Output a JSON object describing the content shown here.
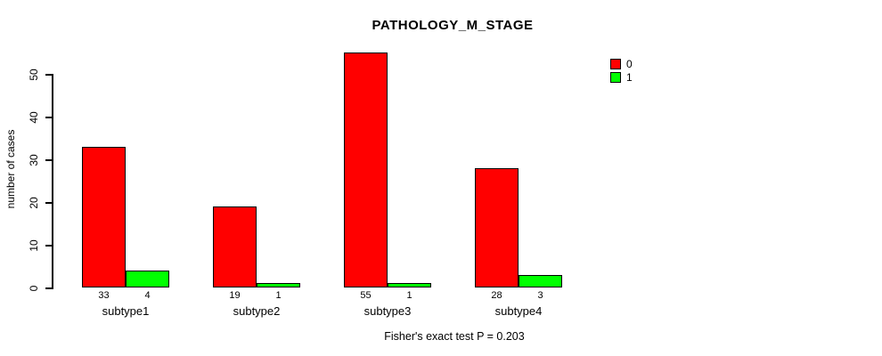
{
  "title": "PATHOLOGY_M_STAGE",
  "footer": "Fisher's exact test P = 0.203",
  "colors": {
    "series_0": "#FF0000",
    "series_1": "#00FF00",
    "axis": "#000000",
    "background": "#FFFFFF"
  },
  "legend": {
    "position": "top-right",
    "items": [
      {
        "label": "0",
        "color": "#FF0000"
      },
      {
        "label": "1",
        "color": "#00FF00"
      }
    ]
  },
  "chart_data": {
    "type": "bar",
    "title": "PATHOLOGY_M_STAGE",
    "categories": [
      "subtype1",
      "subtype2",
      "subtype3",
      "subtype4"
    ],
    "series": [
      {
        "name": "0",
        "color": "#FF0000",
        "values": [
          33,
          19,
          55,
          28
        ]
      },
      {
        "name": "1",
        "color": "#00FF00",
        "values": [
          4,
          1,
          1,
          3
        ]
      }
    ],
    "bar_count_labels": {
      "subtype1": [
        33,
        4
      ],
      "subtype2": [
        19,
        1
      ],
      "subtype3": [
        55,
        1
      ],
      "subtype4": [
        28,
        3
      ]
    },
    "xlabel": "",
    "ylabel": "number of cases",
    "yticks": [
      0,
      10,
      20,
      30,
      40,
      50
    ],
    "ylim": [
      0,
      57
    ],
    "grid": false,
    "legend_position": "top-right",
    "annotation": "Fisher's exact test P = 0.203"
  }
}
